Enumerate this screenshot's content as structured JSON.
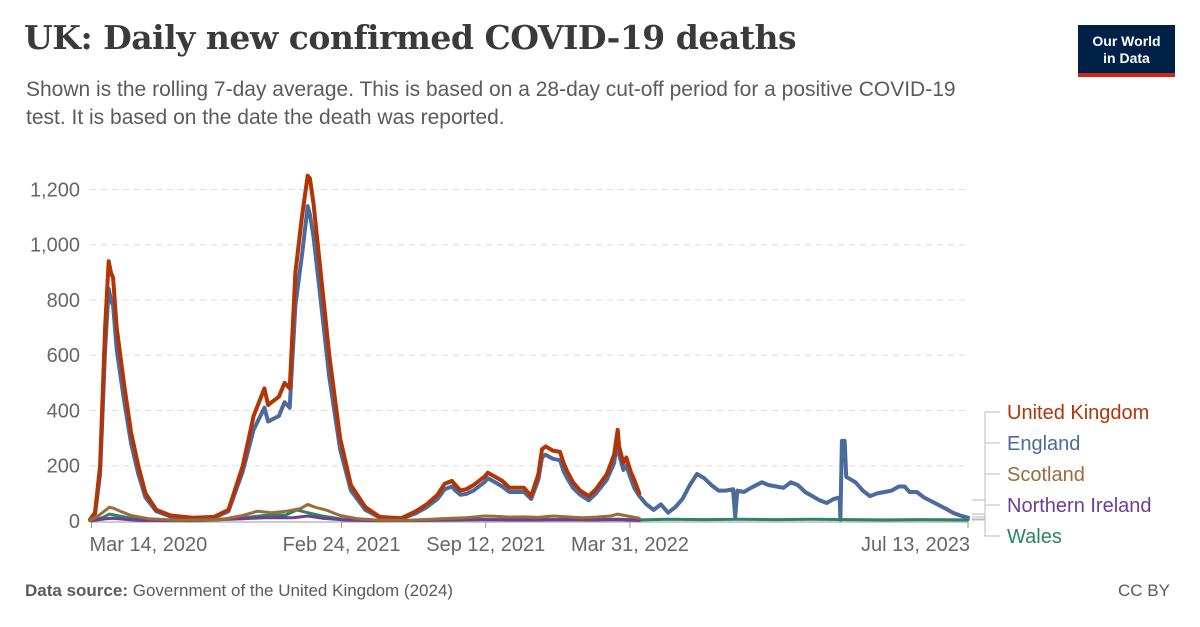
{
  "title": "UK: Daily new confirmed COVID-19 deaths",
  "subtitle": "Shown is the rolling 7-day average. This is based on a 28-day cut-off period for a positive COVID-19 test. It is based on the date the death was reported.",
  "logo": {
    "line1": "Our World",
    "line2": "in Data"
  },
  "source": {
    "label": "Data source:",
    "text": "Government of the United Kingdom (2024)"
  },
  "license": "CC BY",
  "colors": {
    "grid": "#dddddd",
    "axis": "#999999",
    "label_text": "#666666",
    "brand": "#002147",
    "accent": "#ce261e"
  },
  "chart_data": {
    "type": "line",
    "title": "UK: Daily new confirmed COVID-19 deaths",
    "ylabel": "",
    "xlabel": "",
    "ylim": [
      0,
      1250
    ],
    "yticks": [
      0,
      200,
      400,
      600,
      800,
      1000,
      1200
    ],
    "ytick_labels": [
      "0",
      "200",
      "400",
      "600",
      "800",
      "1,000",
      "1,200"
    ],
    "xticks": [
      {
        "label": "Mar 14, 2020",
        "day": 0
      },
      {
        "label": "Feb 24, 2021",
        "day": 347
      },
      {
        "label": "Sep 12, 2021",
        "day": 547
      },
      {
        "label": "Mar 31, 2022",
        "day": 747
      },
      {
        "label": "Jul 13, 2023",
        "day": 1216
      }
    ],
    "xlim": [
      -2,
      1216
    ],
    "series": [
      {
        "name": "United Kingdom",
        "color": "#b13507",
        "width": 4,
        "points": [
          [
            -2,
            5
          ],
          [
            5,
            30
          ],
          [
            12,
            200
          ],
          [
            19,
            700
          ],
          [
            24,
            940
          ],
          [
            27,
            900
          ],
          [
            30,
            880
          ],
          [
            35,
            700
          ],
          [
            45,
            500
          ],
          [
            55,
            320
          ],
          [
            65,
            200
          ],
          [
            75,
            100
          ],
          [
            90,
            40
          ],
          [
            110,
            20
          ],
          [
            140,
            12
          ],
          [
            170,
            15
          ],
          [
            190,
            40
          ],
          [
            210,
            200
          ],
          [
            225,
            380
          ],
          [
            240,
            480
          ],
          [
            245,
            420
          ],
          [
            260,
            450
          ],
          [
            268,
            500
          ],
          [
            275,
            480
          ],
          [
            283,
            900
          ],
          [
            292,
            1100
          ],
          [
            300,
            1250
          ],
          [
            303,
            1240
          ],
          [
            308,
            1150
          ],
          [
            318,
            900
          ],
          [
            330,
            600
          ],
          [
            345,
            300
          ],
          [
            360,
            130
          ],
          [
            380,
            50
          ],
          [
            400,
            15
          ],
          [
            430,
            10
          ],
          [
            450,
            35
          ],
          [
            465,
            60
          ],
          [
            480,
            95
          ],
          [
            490,
            135
          ],
          [
            500,
            145
          ],
          [
            505,
            130
          ],
          [
            512,
            110
          ],
          [
            520,
            115
          ],
          [
            530,
            130
          ],
          [
            545,
            160
          ],
          [
            550,
            175
          ],
          [
            560,
            160
          ],
          [
            570,
            145
          ],
          [
            580,
            120
          ],
          [
            600,
            120
          ],
          [
            610,
            90
          ],
          [
            620,
            170
          ],
          [
            625,
            260
          ],
          [
            630,
            270
          ],
          [
            640,
            255
          ],
          [
            650,
            250
          ],
          [
            655,
            210
          ],
          [
            660,
            180
          ],
          [
            668,
            140
          ],
          [
            678,
            110
          ],
          [
            690,
            90
          ],
          [
            700,
            115
          ],
          [
            715,
            170
          ],
          [
            725,
            240
          ],
          [
            730,
            330
          ],
          [
            732,
            270
          ],
          [
            738,
            210
          ],
          [
            742,
            230
          ],
          [
            748,
            180
          ],
          [
            753,
            150
          ],
          [
            760,
            100
          ]
        ]
      },
      {
        "name": "England",
        "color": "#4c6a9c",
        "width": 4,
        "points": [
          [
            -2,
            4
          ],
          [
            5,
            25
          ],
          [
            12,
            170
          ],
          [
            19,
            620
          ],
          [
            24,
            840
          ],
          [
            27,
            800
          ],
          [
            30,
            780
          ],
          [
            35,
            620
          ],
          [
            45,
            440
          ],
          [
            55,
            280
          ],
          [
            65,
            170
          ],
          [
            75,
            85
          ],
          [
            90,
            35
          ],
          [
            110,
            16
          ],
          [
            140,
            10
          ],
          [
            170,
            12
          ],
          [
            190,
            35
          ],
          [
            210,
            180
          ],
          [
            225,
            330
          ],
          [
            240,
            410
          ],
          [
            245,
            360
          ],
          [
            260,
            380
          ],
          [
            268,
            430
          ],
          [
            275,
            410
          ],
          [
            283,
            780
          ],
          [
            292,
            960
          ],
          [
            300,
            1140
          ],
          [
            303,
            1110
          ],
          [
            308,
            1030
          ],
          [
            318,
            800
          ],
          [
            330,
            520
          ],
          [
            345,
            260
          ],
          [
            360,
            110
          ],
          [
            380,
            40
          ],
          [
            400,
            12
          ],
          [
            430,
            8
          ],
          [
            450,
            28
          ],
          [
            465,
            50
          ],
          [
            480,
            80
          ],
          [
            490,
            115
          ],
          [
            500,
            125
          ],
          [
            505,
            110
          ],
          [
            512,
            95
          ],
          [
            520,
            98
          ],
          [
            530,
            110
          ],
          [
            545,
            140
          ],
          [
            550,
            155
          ],
          [
            560,
            140
          ],
          [
            570,
            125
          ],
          [
            580,
            105
          ],
          [
            600,
            105
          ],
          [
            610,
            80
          ],
          [
            620,
            150
          ],
          [
            625,
            230
          ],
          [
            630,
            240
          ],
          [
            640,
            225
          ],
          [
            650,
            220
          ],
          [
            655,
            180
          ],
          [
            660,
            155
          ],
          [
            668,
            120
          ],
          [
            678,
            95
          ],
          [
            690,
            75
          ],
          [
            700,
            100
          ],
          [
            715,
            150
          ],
          [
            725,
            210
          ],
          [
            730,
            300
          ],
          [
            732,
            240
          ],
          [
            738,
            185
          ],
          [
            742,
            200
          ],
          [
            748,
            155
          ],
          [
            753,
            120
          ],
          [
            760,
            90
          ],
          [
            770,
            60
          ],
          [
            780,
            40
          ],
          [
            790,
            60
          ],
          [
            800,
            30
          ],
          [
            810,
            50
          ],
          [
            820,
            80
          ],
          [
            830,
            130
          ],
          [
            840,
            170
          ],
          [
            850,
            155
          ],
          [
            860,
            130
          ],
          [
            870,
            110
          ],
          [
            880,
            110
          ],
          [
            890,
            115
          ],
          [
            893,
            15
          ],
          [
            896,
            110
          ],
          [
            905,
            105
          ],
          [
            915,
            120
          ],
          [
            930,
            140
          ],
          [
            940,
            130
          ],
          [
            950,
            125
          ],
          [
            960,
            120
          ],
          [
            970,
            140
          ],
          [
            980,
            130
          ],
          [
            990,
            105
          ],
          [
            1000,
            90
          ],
          [
            1010,
            75
          ],
          [
            1020,
            65
          ],
          [
            1030,
            80
          ],
          [
            1038,
            85
          ],
          [
            1039,
            5
          ],
          [
            1041,
            290
          ],
          [
            1045,
            290
          ],
          [
            1047,
            160
          ],
          [
            1060,
            140
          ],
          [
            1070,
            110
          ],
          [
            1080,
            90
          ],
          [
            1090,
            100
          ],
          [
            1100,
            105
          ],
          [
            1110,
            110
          ],
          [
            1120,
            125
          ],
          [
            1128,
            125
          ],
          [
            1135,
            105
          ],
          [
            1145,
            105
          ],
          [
            1155,
            85
          ],
          [
            1170,
            65
          ],
          [
            1185,
            45
          ],
          [
            1195,
            30
          ],
          [
            1205,
            20
          ],
          [
            1216,
            12
          ]
        ]
      },
      {
        "name": "Scotland",
        "color": "#996d39",
        "width": 3,
        "points": [
          [
            -2,
            2
          ],
          [
            10,
            20
          ],
          [
            20,
            40
          ],
          [
            25,
            50
          ],
          [
            32,
            45
          ],
          [
            40,
            35
          ],
          [
            55,
            20
          ],
          [
            80,
            8
          ],
          [
            120,
            3
          ],
          [
            180,
            5
          ],
          [
            210,
            20
          ],
          [
            230,
            35
          ],
          [
            250,
            30
          ],
          [
            270,
            35
          ],
          [
            290,
            45
          ],
          [
            300,
            60
          ],
          [
            310,
            50
          ],
          [
            325,
            40
          ],
          [
            345,
            20
          ],
          [
            370,
            8
          ],
          [
            400,
            3
          ],
          [
            440,
            3
          ],
          [
            470,
            6
          ],
          [
            500,
            10
          ],
          [
            520,
            12
          ],
          [
            545,
            18
          ],
          [
            560,
            17
          ],
          [
            580,
            14
          ],
          [
            600,
            15
          ],
          [
            620,
            13
          ],
          [
            640,
            18
          ],
          [
            660,
            15
          ],
          [
            680,
            12
          ],
          [
            700,
            14
          ],
          [
            720,
            18
          ],
          [
            730,
            25
          ],
          [
            740,
            20
          ],
          [
            750,
            15
          ],
          [
            760,
            10
          ]
        ]
      },
      {
        "name": "Northern Ireland",
        "color": "#6d3e91",
        "width": 3,
        "points": [
          [
            -2,
            1
          ],
          [
            20,
            8
          ],
          [
            30,
            10
          ],
          [
            45,
            6
          ],
          [
            70,
            2
          ],
          [
            140,
            1
          ],
          [
            210,
            8
          ],
          [
            240,
            12
          ],
          [
            280,
            12
          ],
          [
            300,
            18
          ],
          [
            320,
            10
          ],
          [
            350,
            4
          ],
          [
            400,
            1
          ],
          [
            460,
            2
          ],
          [
            500,
            4
          ],
          [
            540,
            5
          ],
          [
            580,
            4
          ],
          [
            620,
            4
          ],
          [
            650,
            5
          ],
          [
            700,
            4
          ],
          [
            730,
            5
          ],
          [
            760,
            2
          ]
        ]
      },
      {
        "name": "Wales",
        "color": "#2c8465",
        "width": 3,
        "points": [
          [
            -2,
            1
          ],
          [
            15,
            12
          ],
          [
            25,
            25
          ],
          [
            35,
            20
          ],
          [
            55,
            10
          ],
          [
            90,
            3
          ],
          [
            150,
            2
          ],
          [
            210,
            12
          ],
          [
            240,
            20
          ],
          [
            270,
            22
          ],
          [
            285,
            40
          ],
          [
            300,
            30
          ],
          [
            320,
            18
          ],
          [
            350,
            6
          ],
          [
            400,
            2
          ],
          [
            460,
            3
          ],
          [
            500,
            4
          ],
          [
            540,
            5
          ],
          [
            580,
            5
          ],
          [
            620,
            5
          ],
          [
            660,
            5
          ],
          [
            700,
            5
          ],
          [
            730,
            7
          ],
          [
            760,
            4
          ],
          [
            800,
            6
          ],
          [
            850,
            5
          ],
          [
            900,
            6
          ],
          [
            950,
            5
          ],
          [
            1000,
            6
          ],
          [
            1050,
            5
          ],
          [
            1100,
            4
          ],
          [
            1150,
            5
          ],
          [
            1216,
            4
          ]
        ]
      }
    ],
    "legend": {
      "position": "right",
      "entries": [
        "United Kingdom",
        "England",
        "Scotland",
        "Northern Ireland",
        "Wales"
      ]
    }
  }
}
